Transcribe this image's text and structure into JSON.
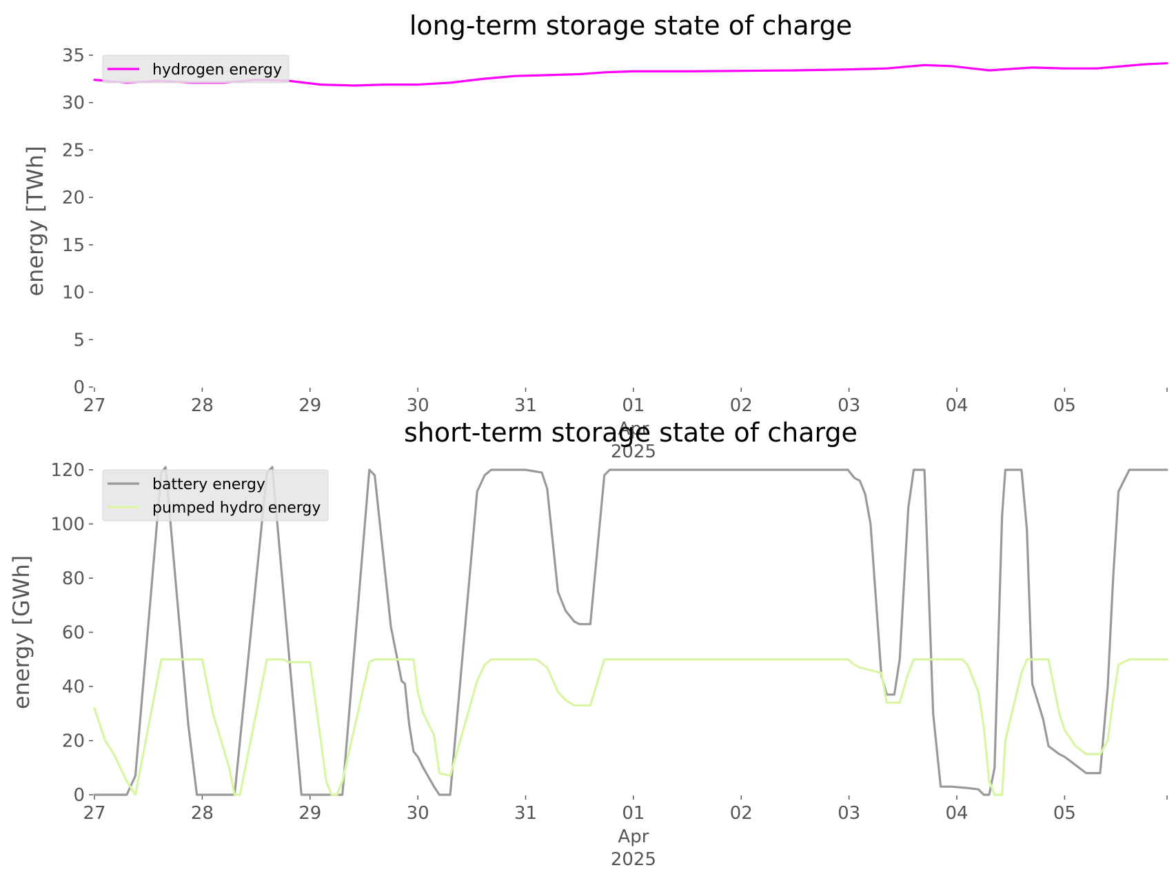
{
  "chart_data": [
    {
      "type": "line",
      "title": "long-term storage state of charge",
      "ylabel": "energy [TWh]",
      "xlabel": "",
      "xlim": [
        0,
        9.95
      ],
      "ylim": [
        0,
        35
      ],
      "yticks": [
        "0",
        "5",
        "10",
        "15",
        "20",
        "25",
        "30",
        "35"
      ],
      "xticks": [
        {
          "pos": 0,
          "label": "27"
        },
        {
          "pos": 1,
          "label": "28"
        },
        {
          "pos": 2,
          "label": "29"
        },
        {
          "pos": 3,
          "label": "30"
        },
        {
          "pos": 4,
          "label": "31"
        },
        {
          "pos": 5,
          "label": "01"
        },
        {
          "pos": 6,
          "label": "02"
        },
        {
          "pos": 7,
          "label": "03"
        },
        {
          "pos": 8,
          "label": "04"
        },
        {
          "pos": 9,
          "label": "05"
        }
      ],
      "xtick_sub": [
        "Apr",
        "2025"
      ],
      "grid": false,
      "legend_position": "upper left",
      "series": [
        {
          "name": "hydrogen energy",
          "color": "#ff00ff",
          "x": [
            0,
            0.3,
            0.6,
            0.9,
            1.2,
            1.5,
            1.8,
            2.1,
            2.4,
            2.7,
            3.0,
            3.3,
            3.6,
            3.9,
            4.2,
            4.5,
            4.75,
            5.0,
            5.5,
            6.0,
            6.5,
            7.0,
            7.35,
            7.7,
            7.95,
            8.3,
            8.7,
            9.0,
            9.3,
            9.6,
            9.75,
            9.95
          ],
          "y": [
            32.4,
            32.1,
            32.3,
            32.1,
            32.1,
            32.4,
            32.3,
            31.9,
            31.8,
            31.9,
            31.9,
            32.1,
            32.5,
            32.8,
            32.9,
            33.0,
            33.2,
            33.3,
            33.3,
            33.35,
            33.4,
            33.5,
            33.6,
            33.95,
            33.85,
            33.4,
            33.7,
            33.6,
            33.6,
            33.9,
            34.05,
            34.15
          ]
        }
      ]
    },
    {
      "type": "line",
      "title": "short-term storage state of charge",
      "ylabel": "energy [GWh]",
      "xlabel": "",
      "xlim": [
        0,
        9.95
      ],
      "ylim": [
        0,
        120
      ],
      "yticks": [
        "0",
        "20",
        "40",
        "60",
        "80",
        "100",
        "120"
      ],
      "xticks": [
        {
          "pos": 0,
          "label": "27"
        },
        {
          "pos": 1,
          "label": "28"
        },
        {
          "pos": 2,
          "label": "29"
        },
        {
          "pos": 3,
          "label": "30"
        },
        {
          "pos": 4,
          "label": "31"
        },
        {
          "pos": 5,
          "label": "01"
        },
        {
          "pos": 6,
          "label": "02"
        },
        {
          "pos": 7,
          "label": "03"
        },
        {
          "pos": 8,
          "label": "04"
        },
        {
          "pos": 9,
          "label": "05"
        }
      ],
      "xtick_sub": [
        "Apr",
        "2025"
      ],
      "grid": false,
      "legend_position": "upper left",
      "series": [
        {
          "name": "battery energy",
          "color": "#999999",
          "x": [
            0,
            0.3,
            0.38,
            0.62,
            0.66,
            0.87,
            0.95,
            1.0,
            1.25,
            1.3,
            1.6,
            1.65,
            1.92,
            1.95,
            2.25,
            2.3,
            2.55,
            2.6,
            2.75,
            2.85,
            2.88,
            2.92,
            2.96,
            3.0,
            3.05,
            3.15,
            3.2,
            3.3,
            3.55,
            3.62,
            3.68,
            3.75,
            4.0,
            4.15,
            4.2,
            4.3,
            4.37,
            4.45,
            4.5,
            4.57,
            4.6,
            4.73,
            4.78,
            4.85,
            5.0,
            5.5,
            6.0,
            6.5,
            6.99,
            7.05,
            7.1,
            7.15,
            7.2,
            7.3,
            7.35,
            7.42,
            7.47,
            7.55,
            7.6,
            7.66,
            7.7,
            7.78,
            7.85,
            7.95,
            8.1,
            8.2,
            8.25,
            8.3,
            8.35,
            8.42,
            8.45,
            8.6,
            8.65,
            8.7,
            8.8,
            8.85,
            8.95,
            9.0,
            9.1,
            9.2,
            9.3,
            9.33,
            9.4,
            9.45,
            9.5,
            9.6,
            9.62,
            9.7,
            9.95
          ],
          "y": [
            0,
            0,
            7,
            119,
            121,
            26,
            0,
            0,
            0,
            0,
            119,
            121,
            0,
            0,
            0,
            0,
            120,
            118,
            62,
            42,
            41,
            26,
            16,
            14,
            10,
            3,
            0,
            0,
            112,
            118,
            120,
            120,
            120,
            119,
            113,
            75,
            68,
            64,
            63,
            63,
            63,
            118,
            120,
            120,
            120,
            120,
            120,
            120,
            120,
            117,
            116,
            111,
            100,
            44,
            37,
            37,
            50,
            106,
            120,
            120,
            120,
            30,
            3,
            3,
            2.5,
            2,
            0,
            0,
            10,
            103,
            120,
            120,
            98,
            41,
            28,
            18,
            15,
            14,
            11,
            8,
            8,
            8,
            40,
            80,
            112,
            120,
            120,
            120,
            120
          ]
        },
        {
          "name": "pumped hydro energy",
          "color": "#d8f5a2",
          "x": [
            0,
            0.1,
            0.18,
            0.3,
            0.38,
            0.62,
            0.66,
            0.95,
            1.0,
            1.1,
            1.25,
            1.3,
            1.35,
            1.6,
            1.65,
            1.75,
            1.8,
            1.9,
            1.95,
            2.0,
            2.1,
            2.15,
            2.2,
            2.25,
            2.3,
            2.55,
            2.6,
            2.85,
            2.88,
            2.92,
            2.96,
            3.0,
            3.05,
            3.15,
            3.2,
            3.3,
            3.55,
            3.62,
            3.68,
            3.75,
            4.0,
            4.1,
            4.2,
            4.3,
            4.37,
            4.45,
            4.5,
            4.57,
            4.6,
            4.73,
            4.78,
            5.0,
            6.0,
            6.99,
            7.05,
            7.1,
            7.2,
            7.3,
            7.35,
            7.42,
            7.47,
            7.55,
            7.6,
            7.8,
            8.0,
            8.05,
            8.1,
            8.2,
            8.25,
            8.3,
            8.35,
            8.42,
            8.45,
            8.6,
            8.65,
            8.7,
            8.8,
            8.85,
            8.95,
            9.0,
            9.1,
            9.2,
            9.3,
            9.33,
            9.4,
            9.45,
            9.5,
            9.6,
            9.62,
            9.7,
            9.95
          ],
          "y": [
            32,
            20,
            15,
            5,
            0,
            50,
            50,
            50,
            50,
            30,
            10,
            0,
            0,
            50,
            50,
            50,
            49,
            49,
            49,
            49,
            20,
            5,
            0,
            0,
            5,
            49,
            50,
            50,
            50,
            50,
            50,
            38,
            30,
            22,
            8,
            7,
            42,
            48,
            50,
            50,
            50,
            50,
            47,
            38,
            35,
            33,
            33,
            33,
            33,
            50,
            50,
            50,
            50,
            50,
            48,
            47,
            46,
            45,
            34,
            34,
            34,
            45,
            50,
            50,
            50,
            50,
            48,
            38,
            25,
            5,
            0,
            0,
            20,
            45,
            50,
            50,
            50,
            50,
            30,
            24,
            18,
            15,
            15,
            15,
            20,
            35,
            48,
            50,
            50,
            50,
            50
          ]
        }
      ]
    }
  ]
}
